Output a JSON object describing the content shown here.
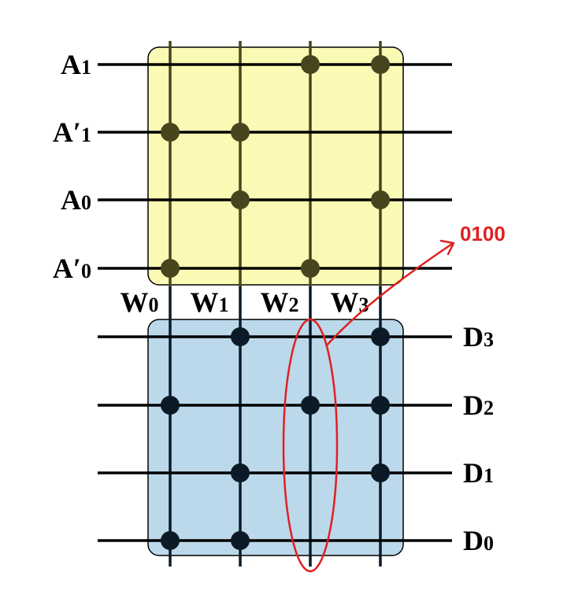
{
  "address_rows": [
    {
      "main": "A",
      "prime": "",
      "sub": "1",
      "dots": [
        2,
        3
      ]
    },
    {
      "main": "A",
      "prime": "′",
      "sub": "1",
      "dots": [
        0,
        1
      ]
    },
    {
      "main": "A",
      "prime": "",
      "sub": "0",
      "dots": [
        1,
        3
      ]
    },
    {
      "main": "A",
      "prime": "′",
      "sub": "0",
      "dots": [
        0,
        2
      ]
    }
  ],
  "word_lines": [
    {
      "main": "W",
      "sub": "0"
    },
    {
      "main": "W",
      "sub": "1"
    },
    {
      "main": "W",
      "sub": "2"
    },
    {
      "main": "W",
      "sub": "3"
    }
  ],
  "data_rows": [
    {
      "main": "D",
      "sub": "3",
      "dots": [
        1,
        3
      ]
    },
    {
      "main": "D",
      "sub": "2",
      "dots": [
        0,
        2,
        3
      ]
    },
    {
      "main": "D",
      "sub": "1",
      "dots": [
        1,
        3
      ]
    },
    {
      "main": "D",
      "sub": "0",
      "dots": [
        0,
        1
      ]
    }
  ],
  "annotation": {
    "text": "0100",
    "color": "#e02020",
    "highlight_word_line": 2
  },
  "colors": {
    "decoder_fill": "#fafab4",
    "encoder_fill": "#bcd8eb",
    "decoder_line": "#48441e",
    "encoder_line": "#0b1a26",
    "label": "#000000"
  }
}
